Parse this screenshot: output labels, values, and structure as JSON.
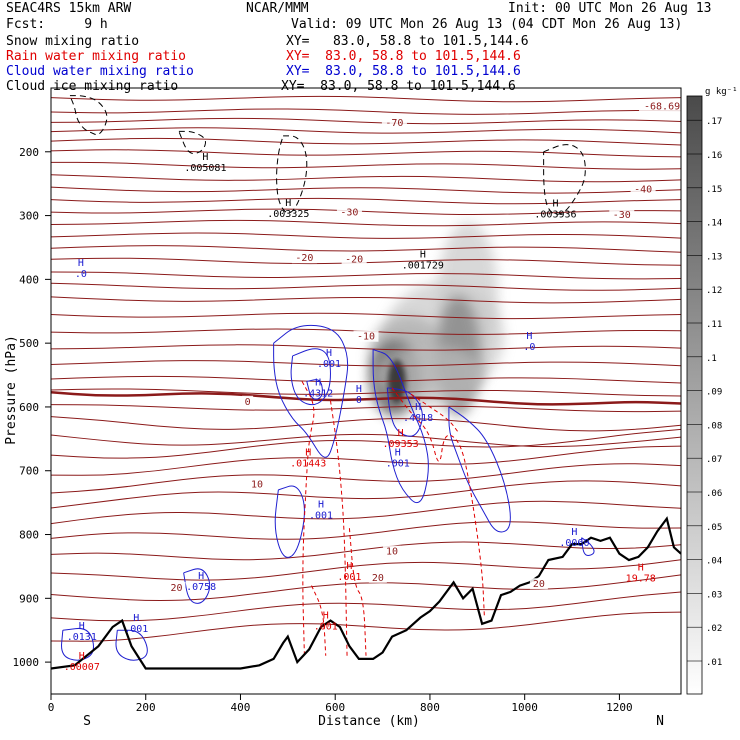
{
  "header": {
    "model": "SEAC4RS 15km ARW",
    "source": "NCAR/MMM",
    "init": "Init: 00 UTC Mon 26 Aug 13",
    "fcst": "Fcst:     9 h",
    "valid": "Valid: 09 UTC Mon 26 Aug 13 (04 CDT Mon 26 Aug 13)",
    "fields": [
      {
        "label": "Snow mixing ratio",
        "color": "#000000",
        "xy": "XY=   83.0, 58.8 to 101.5,144.6"
      },
      {
        "label": "Rain water mixing ratio",
        "color": "#e00000",
        "xy": "XY=  83.0, 58.8 to 101.5,144.6"
      },
      {
        "label": "Cloud water mixing ratio",
        "color": "#0000d0",
        "xy": "XY=  83.0, 58.8 to 101.5,144.6"
      },
      {
        "label": "Cloud ice mixing ratio",
        "color": "#000000",
        "xy": "XY=  83.0, 58.8 to 101.5,144.6"
      }
    ]
  },
  "chart_data": {
    "type": "cross-section",
    "xlabel": "Distance (km)",
    "ylabel": "Pressure (hPa)",
    "xlim": [
      0,
      1330
    ],
    "ylim": [
      1050,
      100
    ],
    "xticks": [
      0,
      200,
      400,
      600,
      800,
      1000,
      1200
    ],
    "yticks": [
      200,
      300,
      400,
      500,
      600,
      700,
      800,
      900,
      1000
    ],
    "endpoints": {
      "left": "S",
      "right": "N"
    },
    "colorbar": {
      "unit": "g kg⁻¹",
      "ticks": [
        ".01",
        ".02",
        ".03",
        ".04",
        ".05",
        ".06",
        ".07",
        ".08",
        ".09",
        ".1",
        ".11",
        ".12",
        ".13",
        ".14",
        ".15",
        ".16",
        ".17"
      ]
    },
    "temperature_contours": [
      {
        "label": "-70",
        "x": 725,
        "p": 158
      },
      {
        "label": "-68.69",
        "x": 1290,
        "p": 132
      },
      {
        "label": "-40",
        "x": 1250,
        "p": 262
      },
      {
        "label": "-30",
        "x": 630,
        "p": 298
      },
      {
        "label": "-30",
        "x": 1205,
        "p": 302
      },
      {
        "label": "-20",
        "x": 535,
        "p": 370
      },
      {
        "label": "-20",
        "x": 640,
        "p": 372
      },
      {
        "label": "-10",
        "x": 665,
        "p": 493
      },
      {
        "label": "0",
        "x": 415,
        "p": 595
      },
      {
        "label": "10",
        "x": 435,
        "p": 725
      },
      {
        "label": "10",
        "x": 720,
        "p": 830
      },
      {
        "label": "20",
        "x": 265,
        "p": 887
      },
      {
        "label": "20",
        "x": 690,
        "p": 871
      },
      {
        "label": "20",
        "x": 1030,
        "p": 881
      }
    ],
    "extrema": [
      {
        "kind": "snow",
        "x": 326,
        "p": 230,
        "value": ".005081"
      },
      {
        "kind": "snow",
        "x": 501,
        "p": 302,
        "value": ".003325"
      },
      {
        "kind": "snow",
        "x": 785,
        "p": 383,
        "value": ".001729"
      },
      {
        "kind": "snow",
        "x": 1065,
        "p": 303,
        "value": ".003936"
      },
      {
        "kind": "cloud",
        "x": 63,
        "p": 396,
        "value": ".0"
      },
      {
        "kind": "cloud",
        "x": 1010,
        "p": 511,
        "value": ".0"
      },
      {
        "kind": "cloud",
        "x": 587,
        "p": 537,
        "value": ".001"
      },
      {
        "kind": "cloud",
        "x": 564,
        "p": 584,
        "value": ".4312"
      },
      {
        "kind": "cloud",
        "x": 650,
        "p": 594,
        "value": "0"
      },
      {
        "kind": "cloud",
        "x": 775,
        "p": 622,
        "value": ".4818"
      },
      {
        "kind": "cloud",
        "x": 732,
        "p": 693,
        "value": ".001"
      },
      {
        "kind": "cloud",
        "x": 570,
        "p": 775,
        "value": ".001"
      },
      {
        "kind": "cloud",
        "x": 317,
        "p": 887,
        "value": ".0758"
      },
      {
        "kind": "cloud",
        "x": 65,
        "p": 965,
        "value": ".0131"
      },
      {
        "kind": "cloud",
        "x": 180,
        "p": 953,
        "value": ".001"
      },
      {
        "kind": "cloud",
        "x": 1105,
        "p": 818,
        "value": ".0060"
      },
      {
        "kind": "rain",
        "x": 543,
        "p": 693,
        "value": ".01443"
      },
      {
        "kind": "rain",
        "x": 738,
        "p": 663,
        "value": ".09353"
      },
      {
        "kind": "rain",
        "x": 630,
        "p": 871,
        "value": ".001"
      },
      {
        "kind": "rain",
        "x": 580,
        "p": 949,
        "value": ".001"
      },
      {
        "kind": "rain",
        "x": 65,
        "p": 1012,
        "value": ".00007"
      },
      {
        "kind": "rain",
        "x": 1245,
        "p": 874,
        "value": "19.78"
      }
    ],
    "terrain": {
      "x": [
        0,
        50,
        100,
        130,
        150,
        170,
        200,
        300,
        400,
        440,
        470,
        490,
        500,
        520,
        545,
        570,
        590,
        610,
        630,
        650,
        680,
        700,
        720,
        750,
        780,
        800,
        820,
        850,
        870,
        890,
        910,
        930,
        950,
        970,
        990,
        1010,
        1030,
        1050,
        1080,
        1100,
        1120,
        1140,
        1160,
        1180,
        1200,
        1220,
        1240,
        1260,
        1280,
        1300,
        1315,
        1330
      ],
      "p": [
        1010,
        1005,
        975,
        945,
        935,
        975,
        1010,
        1010,
        1010,
        1005,
        995,
        970,
        960,
        1000,
        980,
        945,
        935,
        945,
        975,
        995,
        995,
        985,
        960,
        950,
        930,
        920,
        905,
        875,
        900,
        885,
        940,
        935,
        895,
        890,
        880,
        875,
        865,
        840,
        835,
        815,
        815,
        805,
        810,
        805,
        830,
        840,
        835,
        820,
        795,
        775,
        820,
        830
      ]
    }
  }
}
